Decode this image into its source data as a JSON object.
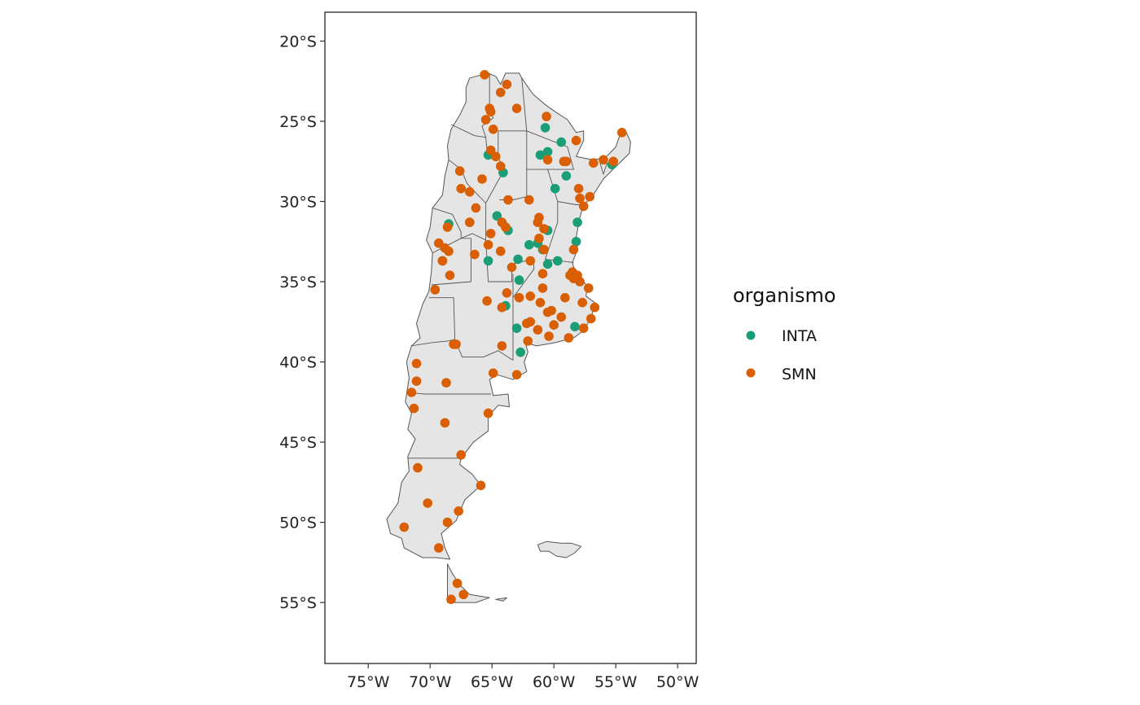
{
  "map": {
    "projection": "longitude-latitude",
    "xlim": [
      -78.5,
      -48.5
    ],
    "ylim": [
      -58.8,
      -18.2
    ],
    "x_ticks": [
      {
        "value": -75,
        "label": "75°W"
      },
      {
        "value": -70,
        "label": "70°W"
      },
      {
        "value": -65,
        "label": "65°W"
      },
      {
        "value": -60,
        "label": "60°W"
      },
      {
        "value": -55,
        "label": "55°W"
      },
      {
        "value": -50,
        "label": "50°W"
      }
    ],
    "y_ticks": [
      {
        "value": -20,
        "label": "20°S"
      },
      {
        "value": -25,
        "label": "25°S"
      },
      {
        "value": -30,
        "label": "30°S"
      },
      {
        "value": -35,
        "label": "35°S"
      },
      {
        "value": -40,
        "label": "40°S"
      },
      {
        "value": -45,
        "label": "45°S"
      },
      {
        "value": -50,
        "label": "50°S"
      },
      {
        "value": -55,
        "label": "55°S"
      }
    ],
    "land_fill": "#e5e5e5",
    "border_color": "#555555"
  },
  "legend": {
    "title": "organismo",
    "entries": [
      {
        "key": "INTA",
        "label": "INTA",
        "color": "#1b9e77"
      },
      {
        "key": "SMN",
        "label": "SMN",
        "color": "#d95f02"
      }
    ]
  },
  "chart_data": {
    "type": "scatter",
    "x_var": "longitude",
    "y_var": "latitude",
    "series": [
      {
        "name": "INTA",
        "color": "#1b9e77",
        "points": [
          [
            -60.7,
            -25.4
          ],
          [
            -59.4,
            -26.3
          ],
          [
            -65.3,
            -27.1
          ],
          [
            -64.1,
            -28.2
          ],
          [
            -61.1,
            -27.1
          ],
          [
            -60.5,
            -26.9
          ],
          [
            -59.0,
            -28.4
          ],
          [
            -59.9,
            -29.2
          ],
          [
            -64.6,
            -30.9
          ],
          [
            -68.5,
            -31.4
          ],
          [
            -58.1,
            -31.3
          ],
          [
            -63.7,
            -31.8
          ],
          [
            -60.5,
            -31.8
          ],
          [
            -58.2,
            -32.5
          ],
          [
            -62.0,
            -32.7
          ],
          [
            -61.3,
            -32.6
          ],
          [
            -60.9,
            -33.0
          ],
          [
            -62.9,
            -33.6
          ],
          [
            -65.3,
            -33.7
          ],
          [
            -69.0,
            -33.7
          ],
          [
            -60.5,
            -33.9
          ],
          [
            -59.7,
            -33.7
          ],
          [
            -62.8,
            -34.9
          ],
          [
            -63.9,
            -36.5
          ],
          [
            -63.0,
            -37.9
          ],
          [
            -58.3,
            -37.8
          ],
          [
            -62.7,
            -39.4
          ],
          [
            -55.3,
            -27.7
          ]
        ]
      },
      {
        "name": "SMN",
        "color": "#d95f02",
        "points": [
          [
            -65.6,
            -22.1
          ],
          [
            -63.8,
            -22.7
          ],
          [
            -64.3,
            -23.2
          ],
          [
            -65.2,
            -24.2
          ],
          [
            -63.0,
            -24.2
          ],
          [
            -65.1,
            -24.4
          ],
          [
            -65.5,
            -24.9
          ],
          [
            -60.6,
            -24.7
          ],
          [
            -64.9,
            -25.5
          ],
          [
            -58.2,
            -26.2
          ],
          [
            -54.5,
            -25.7
          ],
          [
            -65.1,
            -26.8
          ],
          [
            -64.7,
            -27.2
          ],
          [
            -64.3,
            -27.8
          ],
          [
            -60.5,
            -27.4
          ],
          [
            -59.0,
            -27.5
          ],
          [
            -59.2,
            -27.5
          ],
          [
            -56.8,
            -27.6
          ],
          [
            -56.0,
            -27.4
          ],
          [
            -55.2,
            -27.5
          ],
          [
            -67.6,
            -28.1
          ],
          [
            -65.8,
            -28.6
          ],
          [
            -67.5,
            -29.2
          ],
          [
            -66.8,
            -29.4
          ],
          [
            -63.7,
            -29.9
          ],
          [
            -62.0,
            -29.9
          ],
          [
            -58.0,
            -29.2
          ],
          [
            -57.9,
            -29.8
          ],
          [
            -57.6,
            -30.3
          ],
          [
            -57.1,
            -29.7
          ],
          [
            -66.3,
            -30.4
          ],
          [
            -61.2,
            -31.0
          ],
          [
            -61.3,
            -31.3
          ],
          [
            -64.2,
            -31.3
          ],
          [
            -63.9,
            -31.6
          ],
          [
            -60.8,
            -31.7
          ],
          [
            -66.8,
            -31.3
          ],
          [
            -68.6,
            -31.6
          ],
          [
            -65.1,
            -32.0
          ],
          [
            -69.3,
            -32.6
          ],
          [
            -68.8,
            -32.9
          ],
          [
            -61.2,
            -32.3
          ],
          [
            -65.3,
            -32.7
          ],
          [
            -68.5,
            -33.1
          ],
          [
            -58.4,
            -33.0
          ],
          [
            -60.8,
            -33.0
          ],
          [
            -64.3,
            -33.1
          ],
          [
            -66.4,
            -33.3
          ],
          [
            -61.9,
            -33.7
          ],
          [
            -63.4,
            -34.1
          ],
          [
            -69.0,
            -33.7
          ],
          [
            -58.5,
            -34.4
          ],
          [
            -58.7,
            -34.6
          ],
          [
            -58.4,
            -34.8
          ],
          [
            -60.9,
            -34.5
          ],
          [
            -58.1,
            -34.6
          ],
          [
            -68.4,
            -34.6
          ],
          [
            -57.9,
            -35.0
          ],
          [
            -57.2,
            -35.4
          ],
          [
            -60.9,
            -35.4
          ],
          [
            -63.8,
            -35.7
          ],
          [
            -69.6,
            -35.5
          ],
          [
            -61.9,
            -35.9
          ],
          [
            -62.8,
            -36.0
          ],
          [
            -59.1,
            -36.0
          ],
          [
            -61.1,
            -36.3
          ],
          [
            -57.7,
            -36.3
          ],
          [
            -56.7,
            -36.6
          ],
          [
            -65.4,
            -36.2
          ],
          [
            -64.2,
            -36.6
          ],
          [
            -60.2,
            -36.8
          ],
          [
            -59.4,
            -37.2
          ],
          [
            -57.0,
            -37.3
          ],
          [
            -60.0,
            -37.7
          ],
          [
            -57.6,
            -37.9
          ],
          [
            -62.2,
            -37.6
          ],
          [
            -61.9,
            -37.5
          ],
          [
            -60.5,
            -36.9
          ],
          [
            -61.3,
            -38.0
          ],
          [
            -60.4,
            -38.4
          ],
          [
            -58.8,
            -38.5
          ],
          [
            -62.1,
            -38.7
          ],
          [
            -68.1,
            -38.9
          ],
          [
            -67.9,
            -38.9
          ],
          [
            -64.2,
            -39.0
          ],
          [
            -71.1,
            -40.1
          ],
          [
            -64.9,
            -40.7
          ],
          [
            -63.0,
            -40.8
          ],
          [
            -71.1,
            -41.2
          ],
          [
            -68.7,
            -41.3
          ],
          [
            -71.5,
            -41.9
          ],
          [
            -71.3,
            -42.9
          ],
          [
            -65.3,
            -43.2
          ],
          [
            -68.8,
            -43.8
          ],
          [
            -67.5,
            -45.8
          ],
          [
            -71.0,
            -46.6
          ],
          [
            -65.9,
            -47.7
          ],
          [
            -70.2,
            -48.8
          ],
          [
            -67.7,
            -49.3
          ],
          [
            -68.6,
            -50.0
          ],
          [
            -72.1,
            -50.3
          ],
          [
            -69.3,
            -51.6
          ],
          [
            -67.8,
            -53.8
          ],
          [
            -67.3,
            -54.5
          ],
          [
            -68.3,
            -54.8
          ]
        ]
      }
    ]
  }
}
